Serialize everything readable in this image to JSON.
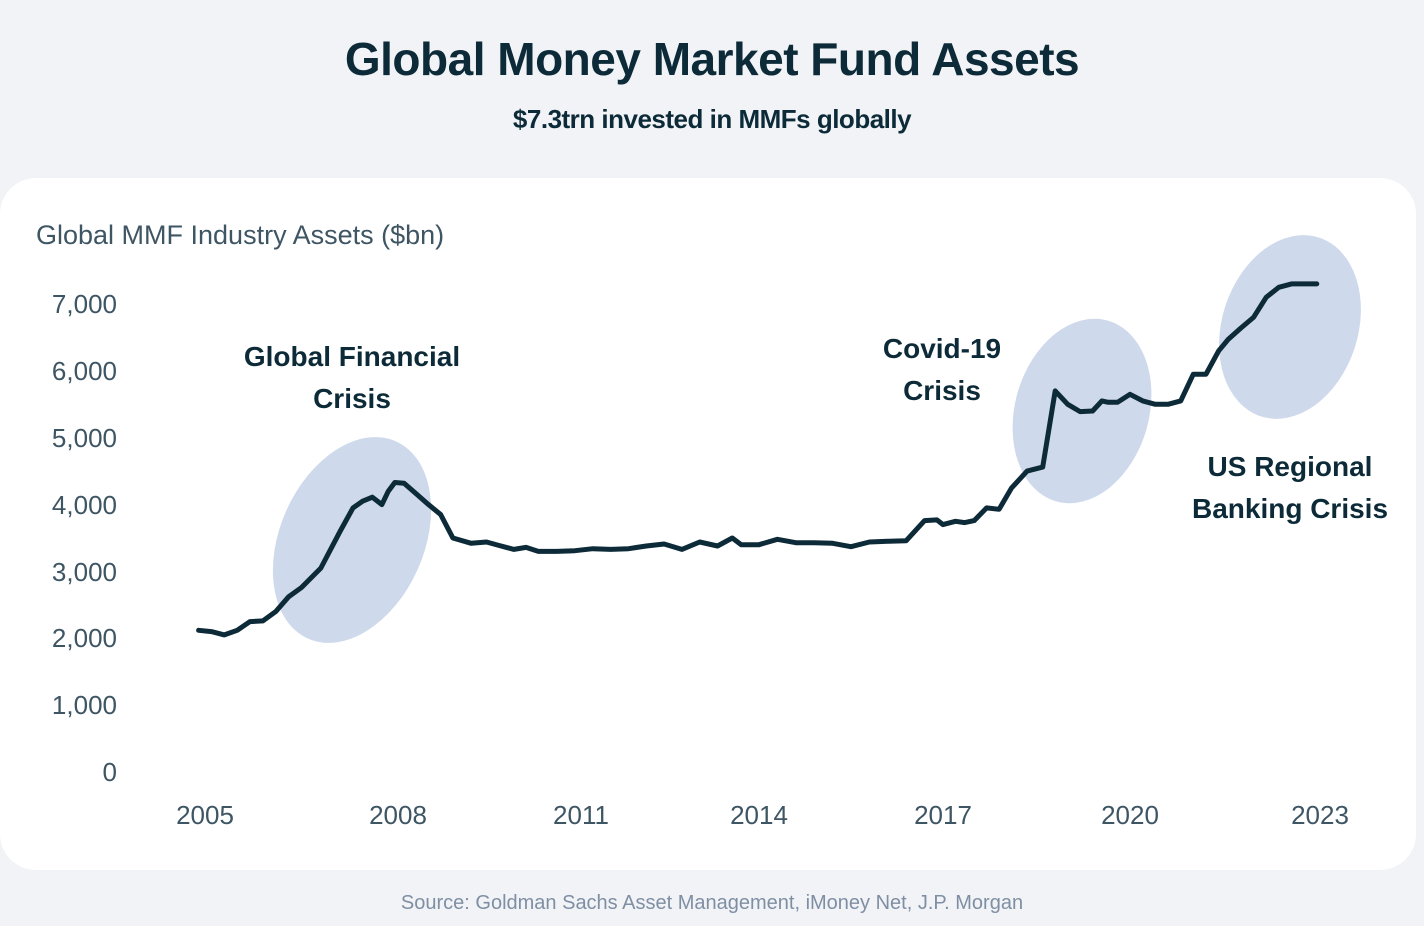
{
  "header": {
    "title": "Global Money Market Fund Assets",
    "subtitle": "$7.3trn invested in MMFs globally"
  },
  "footer": {
    "source": "Source: Goldman Sachs Asset Management, iMoney Net, J.P. Morgan"
  },
  "colors": {
    "background": "#f1f3f7",
    "card": "#ffffff",
    "line": "#0c2a37",
    "highlight": "#cfd9ec",
    "axis_text": "#3e5564",
    "source_text": "#7f8fa3"
  },
  "chart_data": {
    "type": "line",
    "ylabel": "Global MMF Industry Assets ($bn)",
    "ylim": [
      0,
      7000
    ],
    "yticks": [
      0,
      1000,
      2000,
      3000,
      4000,
      5000,
      6000,
      7000
    ],
    "ytick_labels": [
      "0",
      "1,000",
      "2,000",
      "3,000",
      "4,000",
      "5,000",
      "6,000",
      "7,000"
    ],
    "xticks": [
      2005,
      2008,
      2011,
      2014,
      2017,
      2020,
      2023
    ],
    "xtick_labels": [
      "2005",
      "2008",
      "2011",
      "2014",
      "2017",
      "2020",
      "2023"
    ],
    "grid": false,
    "series": [
      {
        "name": "Global MMF Industry Assets",
        "x": [
          2004.9,
          2005.1,
          2005.3,
          2005.5,
          2005.7,
          2005.9,
          2006.1,
          2006.3,
          2006.5,
          2006.8,
          2007.1,
          2007.3,
          2007.45,
          2007.6,
          2007.75,
          2007.85,
          2007.95,
          2008.1,
          2008.3,
          2008.5,
          2008.7,
          2008.9,
          2009.2,
          2009.45,
          2009.65,
          2009.9,
          2010.1,
          2010.3,
          2010.6,
          2010.9,
          2011.2,
          2011.5,
          2011.8,
          2012.1,
          2012.4,
          2012.7,
          2013.0,
          2013.3,
          2013.55,
          2013.7,
          2014.0,
          2014.3,
          2014.6,
          2014.9,
          2015.2,
          2015.5,
          2015.8,
          2016.1,
          2016.4,
          2016.7,
          2016.9,
          2017.0,
          2017.2,
          2017.35,
          2017.5,
          2017.7,
          2017.9,
          2018.1,
          2018.35,
          2018.6,
          2018.8,
          2019.0,
          2019.2,
          2019.4,
          2019.55,
          2019.65,
          2019.8,
          2020.0,
          2020.2,
          2020.4,
          2020.6,
          2020.8,
          2021.0,
          2021.2,
          2021.4,
          2021.55,
          2021.75,
          2021.95,
          2022.15,
          2022.35,
          2022.55,
          2022.75,
          2022.95
        ],
        "values": [
          2120,
          2100,
          2050,
          2120,
          2250,
          2260,
          2400,
          2620,
          2760,
          3050,
          3600,
          3950,
          4050,
          4110,
          4000,
          4200,
          4330,
          4320,
          4160,
          4000,
          3850,
          3500,
          3420,
          3440,
          3390,
          3330,
          3360,
          3300,
          3300,
          3310,
          3340,
          3330,
          3340,
          3380,
          3410,
          3330,
          3440,
          3380,
          3500,
          3400,
          3400,
          3480,
          3430,
          3430,
          3420,
          3370,
          3440,
          3450,
          3460,
          3760,
          3770,
          3700,
          3750,
          3730,
          3760,
          3950,
          3930,
          4250,
          4500,
          4560,
          5700,
          5500,
          5390,
          5400,
          5550,
          5530,
          5530,
          5650,
          5550,
          5500,
          5500,
          5550,
          5950,
          5950,
          6300,
          6470,
          6640,
          6800,
          7100,
          7250,
          7300,
          7300,
          7300
        ]
      }
    ],
    "annotations": [
      {
        "label_line1": "Global Financial",
        "label_line2": "Crisis",
        "period": [
          2007.0,
          2008.5
        ]
      },
      {
        "label_line1": "Covid-19",
        "label_line2": "Crisis",
        "period": [
          2019.0,
          2020.2
        ]
      },
      {
        "label_line1": "US Regional",
        "label_line2": "Banking Crisis",
        "period": [
          2022.0,
          2023.0
        ]
      }
    ]
  }
}
